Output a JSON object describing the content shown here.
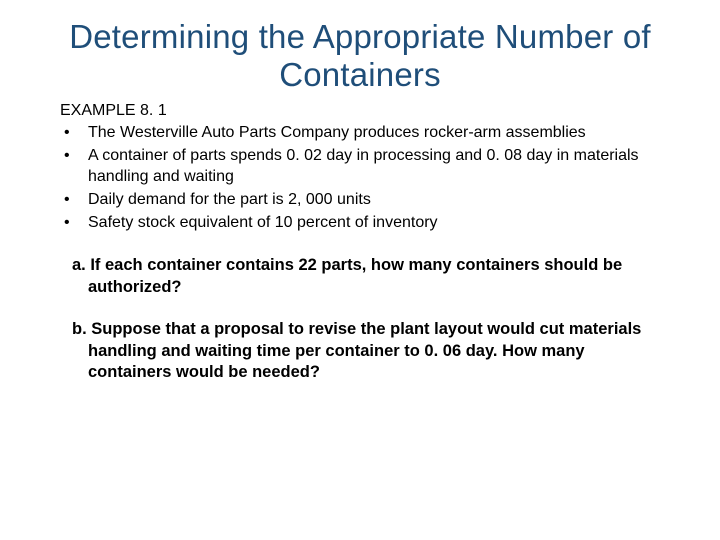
{
  "title_color": "#1f4e79",
  "body_color": "#000000",
  "background_color": "#ffffff",
  "title_fontsize": 33,
  "body_fontsize": 16,
  "question_fontsize": 16.5,
  "title": "Determining the Appropriate Number of Containers",
  "example_label": "EXAMPLE 8. 1",
  "bullets": [
    "The Westerville Auto Parts Company produces rocker-arm assemblies",
    "A container of parts spends 0. 02 day in processing and 0. 08 day in materials handling and waiting",
    "Daily demand for the part is 2, 000 units",
    "Safety stock equivalent of 10 percent of inventory"
  ],
  "question_a": "a. If each container contains 22 parts, how many containers should be authorized?",
  "question_b": "b. Suppose that a proposal to revise the plant layout would cut materials handling and waiting time per container to 0. 06 day. How many containers would be needed?"
}
